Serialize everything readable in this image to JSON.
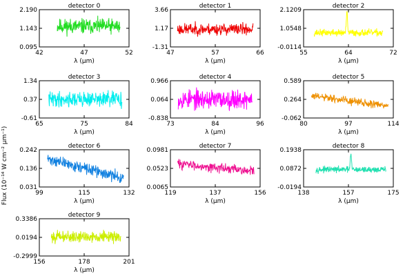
{
  "y_axis_label": "Flux (10⁻¹⁴ W cm⁻² μm⁻¹)",
  "chart_data": [
    {
      "type": "line",
      "title": "detector 0",
      "xlabel": "λ (μm)",
      "xlim": [
        42,
        52
      ],
      "xticks": [
        "42",
        "47",
        "52"
      ],
      "ylim": [
        0.095,
        2.19
      ],
      "yticks": [
        "0.095",
        "1.143",
        "2.190"
      ],
      "color": "#22dd22",
      "x_range": [
        44.0,
        51.0
      ],
      "level": 1.25,
      "noise": 0.3,
      "seed": 11
    },
    {
      "type": "line",
      "title": "detector 1",
      "xlabel": "λ (μm)",
      "xlim": [
        47,
        66
      ],
      "xticks": [
        "47",
        "57",
        "66"
      ],
      "ylim": [
        -1.31,
        3.66
      ],
      "yticks": [
        "-1.31",
        "1.17",
        "3.66"
      ],
      "color": "#ee0000",
      "x_range": [
        48.5,
        64.5
      ],
      "level": 1.05,
      "noise": 0.55,
      "seed": 23
    },
    {
      "type": "line",
      "title": "detector 2",
      "xlabel": "λ (μm)",
      "xlim": [
        55,
        72
      ],
      "xticks": [
        "55",
        "64",
        "72"
      ],
      "ylim": [
        -0.0114,
        2.1209
      ],
      "yticks": [
        "-0.0114",
        "1.0548",
        "2.1209"
      ],
      "color": "#ffff00",
      "x_range": [
        57.0,
        70.0
      ],
      "level": 0.8,
      "noise": 0.14,
      "seed": 37,
      "peak": {
        "x": 63.2,
        "y": 1.95
      }
    },
    {
      "type": "line",
      "title": "detector 3",
      "xlabel": "λ (μm)",
      "xlim": [
        65,
        84
      ],
      "xticks": [
        "65",
        "75",
        "84"
      ],
      "ylim": [
        -0.61,
        1.34
      ],
      "yticks": [
        "-0.61",
        "0.37",
        "1.34"
      ],
      "color": "#00eeee",
      "x_range": [
        67.0,
        82.5
      ],
      "level": 0.37,
      "noise": 0.28,
      "seed": 41
    },
    {
      "type": "line",
      "title": "detector 4",
      "xlabel": "λ (μm)",
      "xlim": [
        73,
        96
      ],
      "xticks": [
        "73",
        "84",
        "96"
      ],
      "ylim": [
        -0.838,
        0.966
      ],
      "yticks": [
        "-0.838",
        "0.064",
        "0.966"
      ],
      "color": "#ff00ff",
      "x_range": [
        75.0,
        94.0
      ],
      "level": 0.064,
      "noise": 0.33,
      "seed": 53
    },
    {
      "type": "line",
      "title": "detector 5",
      "xlabel": "λ (μm)",
      "xlim": [
        80,
        114
      ],
      "xticks": [
        "80",
        "97",
        "114"
      ],
      "ylim": [
        -0.062,
        0.589
      ],
      "yticks": [
        "-0.062",
        "0.264",
        "0.589"
      ],
      "color": "#ee9000",
      "x_range": [
        83.0,
        112.0
      ],
      "level": [
        0.32,
        0.15
      ],
      "noise": 0.05,
      "seed": 61
    },
    {
      "type": "line",
      "title": "detector 6",
      "xlabel": "λ (μm)",
      "xlim": [
        99,
        132
      ],
      "xticks": [
        "99",
        "115",
        "132"
      ],
      "ylim": [
        0.031,
        0.242
      ],
      "yticks": [
        "0.031",
        "0.136",
        "0.242"
      ],
      "color": "#1080e0",
      "x_range": [
        102.0,
        130.0
      ],
      "level": [
        0.19,
        0.08
      ],
      "noise": 0.022,
      "seed": 71
    },
    {
      "type": "line",
      "title": "detector 7",
      "xlabel": "λ (μm)",
      "xlim": [
        119,
        156
      ],
      "xticks": [
        "119",
        "137",
        "156"
      ],
      "ylim": [
        0.0065,
        0.0981
      ],
      "yticks": [
        "0.0065",
        "0.0523",
        "0.0981"
      ],
      "color": "#ee1090",
      "x_range": [
        122.0,
        153.5
      ],
      "level": [
        0.064,
        0.045
      ],
      "noise": 0.008,
      "seed": 83
    },
    {
      "type": "line",
      "title": "detector 8",
      "xlabel": "λ (μm)",
      "xlim": [
        138,
        175
      ],
      "xticks": [
        "138",
        "157",
        "175"
      ],
      "ylim": [
        -0.0194,
        0.1938
      ],
      "yticks": [
        "-0.0194",
        "0.0872",
        "0.1938"
      ],
      "color": "#20e0b0",
      "x_range": [
        143.0,
        172.0
      ],
      "level": 0.08,
      "noise": 0.012,
      "seed": 97,
      "peak": {
        "x": 157.5,
        "y": 0.165
      }
    },
    {
      "type": "line",
      "title": "detector 9",
      "xlabel": "λ (μm)",
      "xlim": [
        156,
        201
      ],
      "xticks": [
        "156",
        "178",
        "201"
      ],
      "ylim": [
        -0.2999,
        0.3386
      ],
      "yticks": [
        "-0.2999",
        "0.0194",
        "0.3386"
      ],
      "color": "#ccee00",
      "x_range": [
        162.0,
        197.0
      ],
      "level": 0.03,
      "noise": 0.07,
      "seed": 101
    }
  ]
}
